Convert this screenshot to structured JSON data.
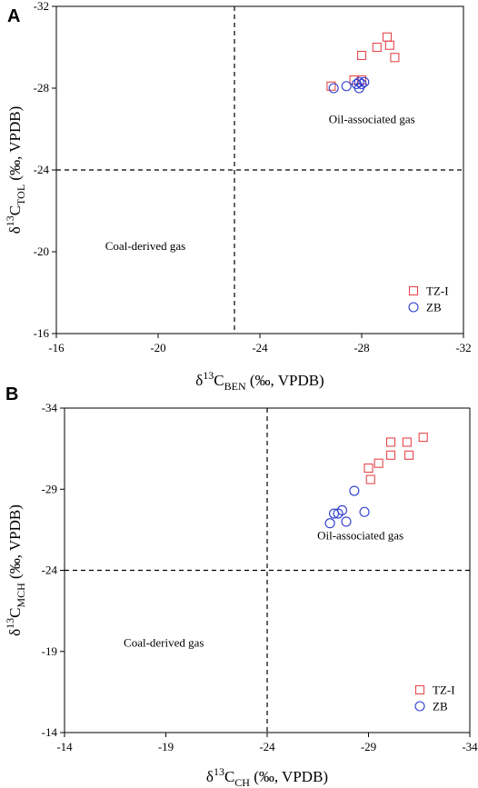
{
  "chart_data": [
    {
      "type": "scatter",
      "panel": "A",
      "xlabel": {
        "prefix": "δ",
        "sup": "13",
        "main": "C",
        "sub": "BEN",
        "rest": " (‰, VPDB)"
      },
      "ylabel": {
        "prefix": "δ",
        "sup": "13",
        "main": "C",
        "sub": "TOL",
        "rest": " (‰, VPDB)"
      },
      "xlim": [
        -16,
        -32
      ],
      "ylim": [
        -16,
        -32
      ],
      "xticks": [
        "-16",
        "-20",
        "-24",
        "-28",
        "-32"
      ],
      "yticks": [
        "-16",
        "-20",
        "-24",
        "-28",
        "-32"
      ],
      "xtick_values": [
        -16,
        -20,
        -24,
        -28,
        -32
      ],
      "ytick_values": [
        -16,
        -20,
        -24,
        -28,
        -32
      ],
      "divider_x": -23,
      "divider_y": -24,
      "regions": [
        {
          "label": "Oil-associated gas",
          "x": -28.4,
          "y": -26.3
        },
        {
          "label": "Coal-derived gas",
          "x": -19.5,
          "y": -20.1
        }
      ],
      "series": [
        {
          "name": "TZ-I",
          "marker": "square",
          "color": "#e8474b",
          "points": [
            [
              -26.8,
              -28.1
            ],
            [
              -27.7,
              -28.4
            ],
            [
              -28.0,
              -28.4
            ],
            [
              -28.0,
              -29.6
            ],
            [
              -28.6,
              -30.0
            ],
            [
              -29.0,
              -30.5
            ],
            [
              -29.1,
              -30.1
            ],
            [
              -29.3,
              -29.5
            ]
          ]
        },
        {
          "name": "ZB",
          "marker": "circle",
          "color": "#2b3ccf",
          "points": [
            [
              -26.9,
              -28.0
            ],
            [
              -27.4,
              -28.1
            ],
            [
              -27.8,
              -28.2
            ],
            [
              -27.9,
              -28.3
            ],
            [
              -28.0,
              -28.2
            ],
            [
              -27.9,
              -28.0
            ],
            [
              -28.1,
              -28.3
            ]
          ]
        }
      ],
      "legend_position": "bottom-right"
    },
    {
      "type": "scatter",
      "panel": "B",
      "xlabel": {
        "prefix": "δ",
        "sup": "13",
        "main": "C",
        "sub": "CH",
        "rest": " (‰, VPDB)"
      },
      "ylabel": {
        "prefix": "δ",
        "sup": "13",
        "main": "C",
        "sub": "MCH",
        "rest": " (‰, VPDB)"
      },
      "xlim": [
        -14,
        -34
      ],
      "ylim": [
        -14,
        -34
      ],
      "xticks": [
        "-14",
        "-19",
        "-24",
        "-29",
        "-34"
      ],
      "yticks": [
        "-14",
        "-19",
        "-24",
        "-29",
        "-34"
      ],
      "xtick_values": [
        -14,
        -19,
        -24,
        -29,
        -34
      ],
      "ytick_values": [
        -14,
        -19,
        -24,
        -29,
        -34
      ],
      "divider_x": -24,
      "divider_y": -24,
      "regions": [
        {
          "label": "Oil-associated gas",
          "x": -28.6,
          "y": -25.9
        },
        {
          "label": "Coal-derived gas",
          "x": -18.9,
          "y": -19.3
        }
      ],
      "series": [
        {
          "name": "TZ-I",
          "marker": "square",
          "color": "#e8474b",
          "points": [
            [
              -29.0,
              -30.3
            ],
            [
              -29.1,
              -29.6
            ],
            [
              -29.5,
              -30.6
            ],
            [
              -30.1,
              -31.9
            ],
            [
              -30.1,
              -31.1
            ],
            [
              -30.9,
              -31.9
            ],
            [
              -31.0,
              -31.1
            ],
            [
              -31.7,
              -32.2
            ]
          ]
        },
        {
          "name": "ZB",
          "marker": "circle",
          "color": "#2b3ccf",
          "points": [
            [
              -27.1,
              -26.9
            ],
            [
              -27.3,
              -27.5
            ],
            [
              -27.5,
              -27.5
            ],
            [
              -27.7,
              -27.7
            ],
            [
              -27.9,
              -27.0
            ],
            [
              -28.3,
              -28.9
            ],
            [
              -28.8,
              -27.6
            ]
          ]
        }
      ],
      "legend_position": "bottom-right"
    }
  ]
}
